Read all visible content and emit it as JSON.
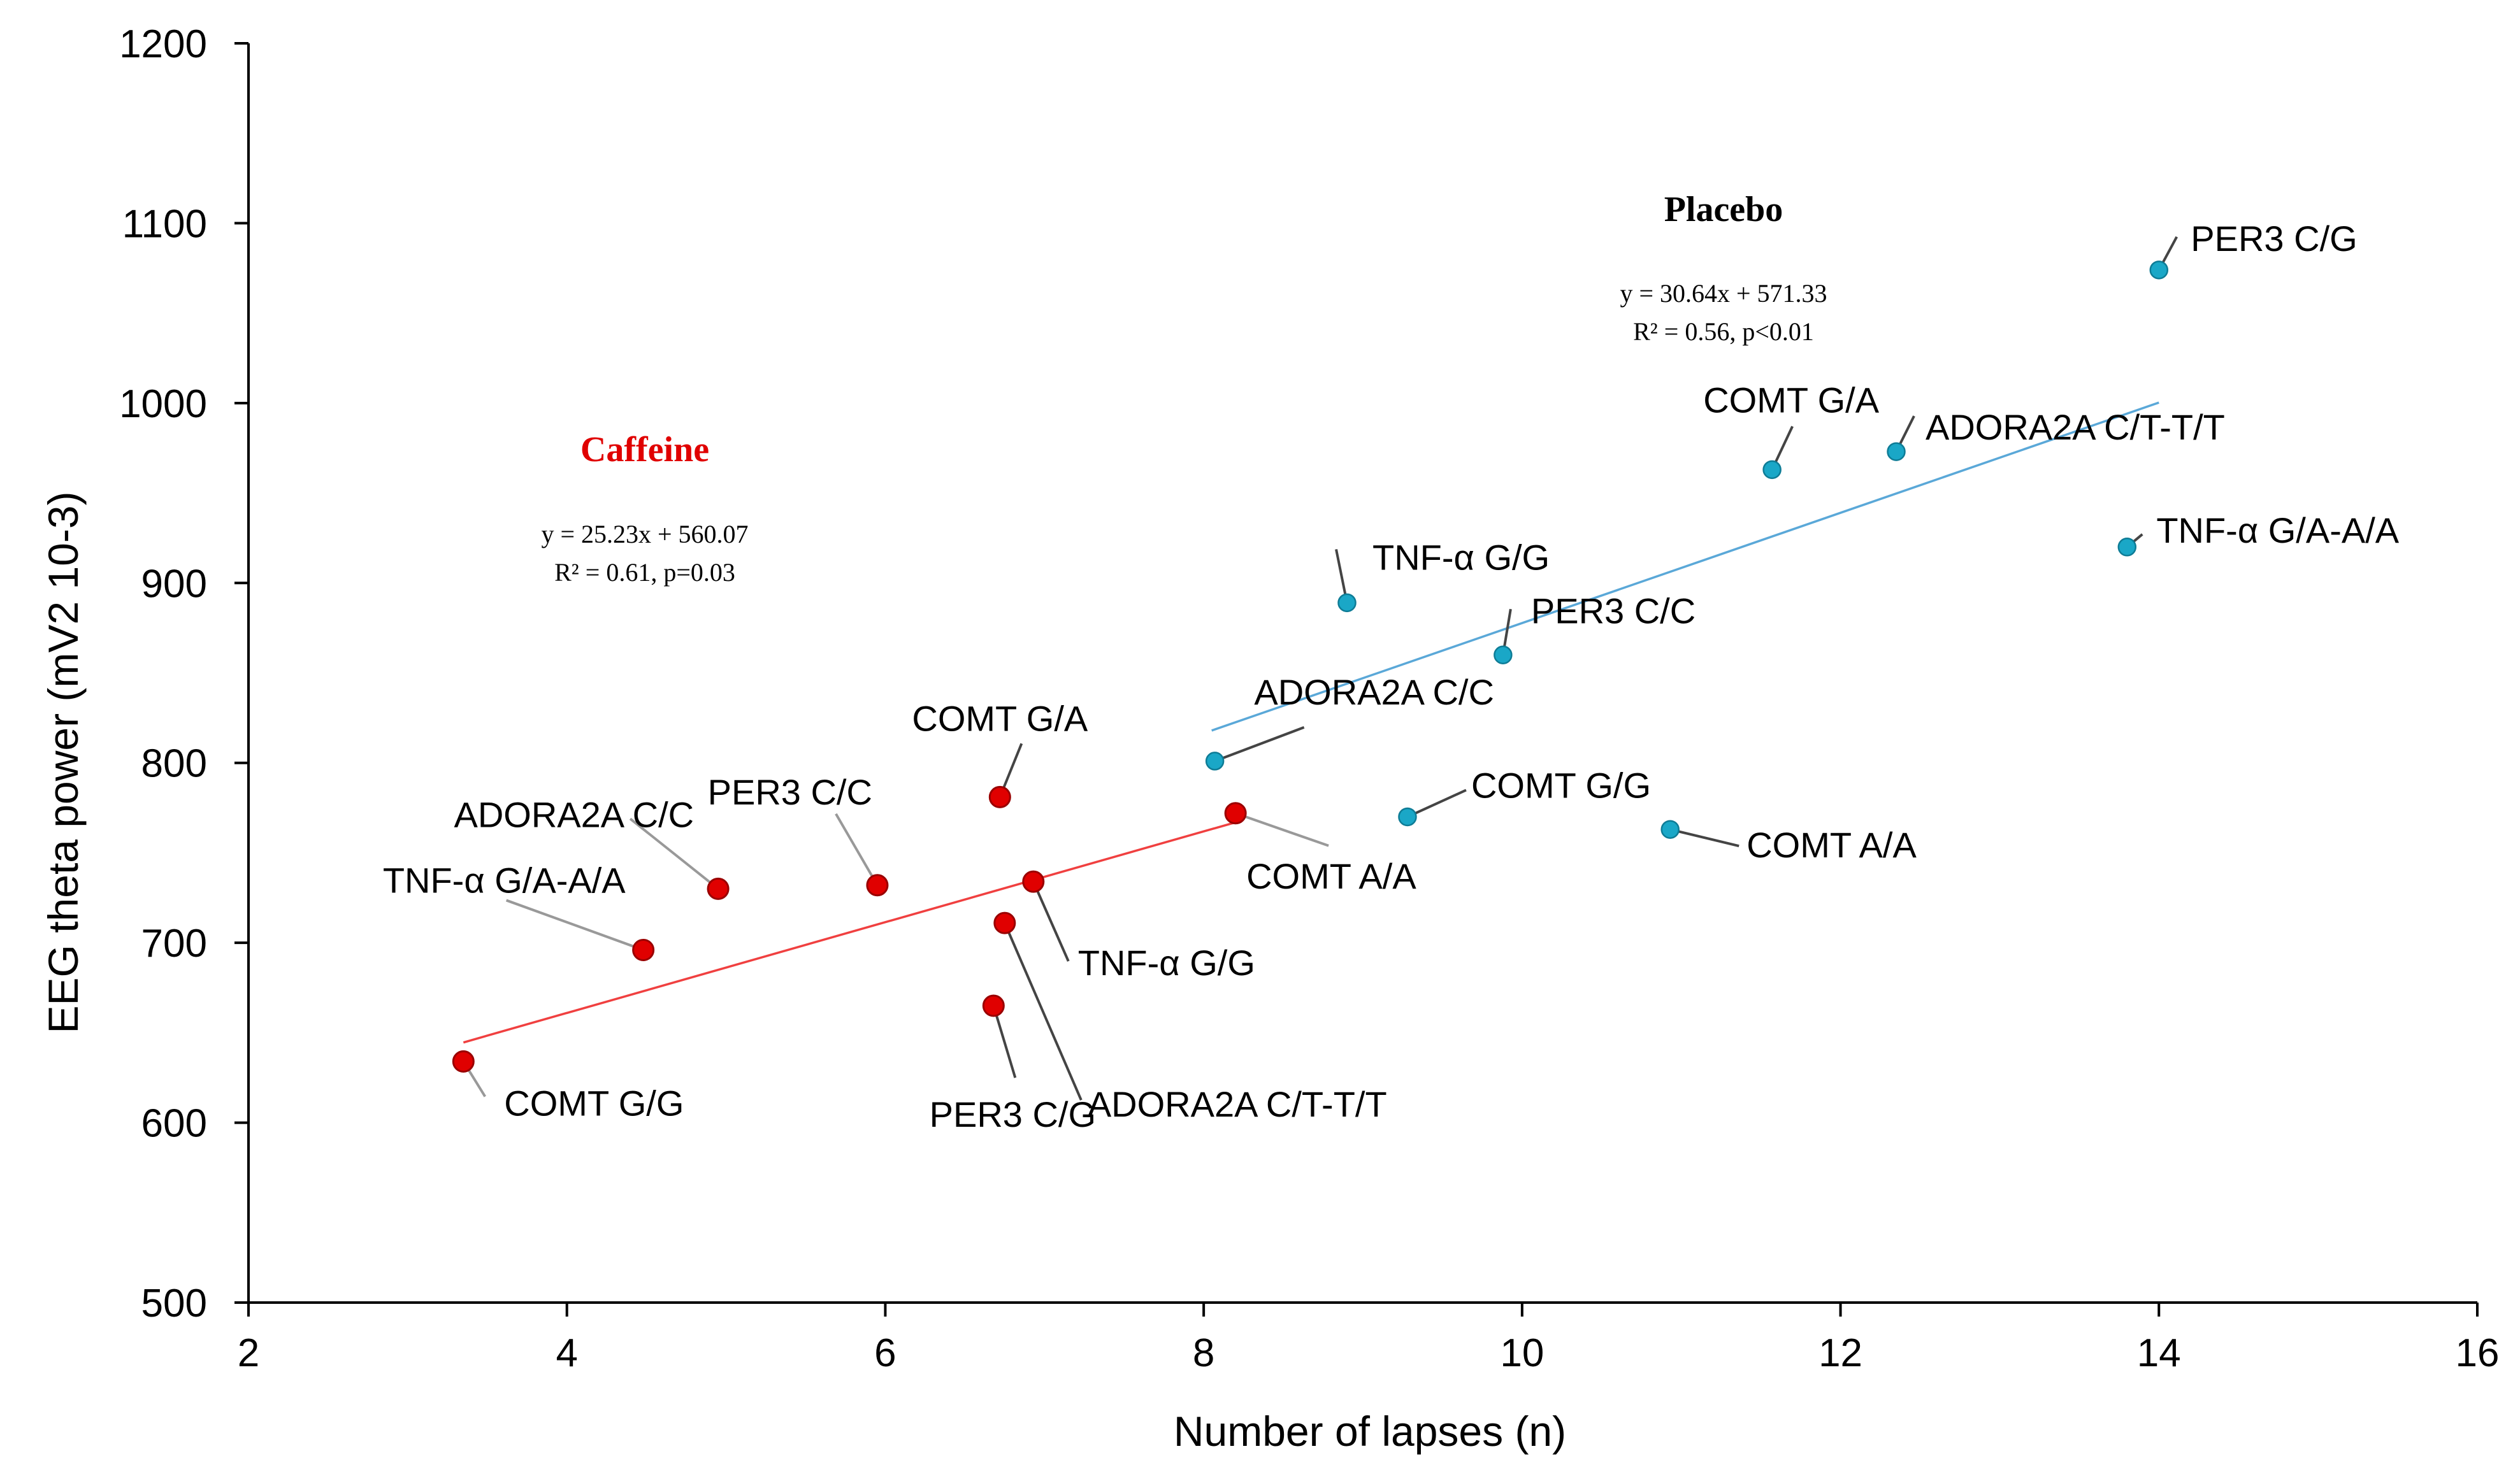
{
  "chart_data": {
    "type": "scatter",
    "title": "",
    "xlabel": "Number of lapses  (n)",
    "ylabel": "EEG theta power (mV2 10-3)",
    "xlim": [
      2,
      16
    ],
    "ylim": [
      500,
      1200
    ],
    "xticks": [
      2,
      4,
      6,
      8,
      10,
      12,
      14,
      16
    ],
    "yticks": [
      500,
      600,
      700,
      800,
      900,
      1000,
      1100,
      1200
    ],
    "grid": false,
    "series": [
      {
        "name": "Caffeine",
        "color": "#e00000",
        "equation": "y = 25.23x + 560.07",
        "stats": "R² = 0.61, p=0.03",
        "trendline": {
          "slope": 25.23,
          "intercept": 560.07,
          "x_range": [
            3.35,
            8.2
          ]
        },
        "points": [
          {
            "label": "COMT G/G",
            "x": 3.35,
            "y": 634
          },
          {
            "label": "TNF-α G/A-A/A",
            "x": 4.48,
            "y": 696
          },
          {
            "label": "ADORA2A C/C",
            "x": 4.95,
            "y": 730
          },
          {
            "label": "PER3 C/C",
            "x": 5.95,
            "y": 732
          },
          {
            "label": "COMT G/A",
            "x": 6.72,
            "y": 781
          },
          {
            "label": "PER3 C/G",
            "x": 6.68,
            "y": 665
          },
          {
            "label": "ADORA2A C/T-T/T",
            "x": 6.75,
            "y": 711
          },
          {
            "label": "TNF-α G/G",
            "x": 6.93,
            "y": 734
          },
          {
            "label": "COMT A/A",
            "x": 8.2,
            "y": 772
          }
        ]
      },
      {
        "name": "Placebo",
        "color": "#1aa7c7",
        "equation": "y = 30.64x + 571.33",
        "stats": "R² = 0.56, p<0.01",
        "trendline": {
          "slope": 30.64,
          "intercept": 571.33,
          "x_range": [
            8.05,
            14.0
          ]
        },
        "points": [
          {
            "label": "ADORA2A C/C",
            "x": 8.07,
            "y": 801
          },
          {
            "label": "TNF-α G/G",
            "x": 8.9,
            "y": 889
          },
          {
            "label": "COMT G/G",
            "x": 9.28,
            "y": 770
          },
          {
            "label": "PER3 C/C",
            "x": 9.88,
            "y": 860
          },
          {
            "label": "COMT A/A",
            "x": 10.93,
            "y": 763
          },
          {
            "label": "COMT G/A",
            "x": 11.57,
            "y": 963
          },
          {
            "label": "ADORA2A C/T-T/T",
            "x": 12.35,
            "y": 973
          },
          {
            "label": "TNF-α G/A-A/A",
            "x": 13.8,
            "y": 920
          },
          {
            "label": "PER3 C/G",
            "x": 14.0,
            "y": 1074
          }
        ]
      }
    ]
  }
}
